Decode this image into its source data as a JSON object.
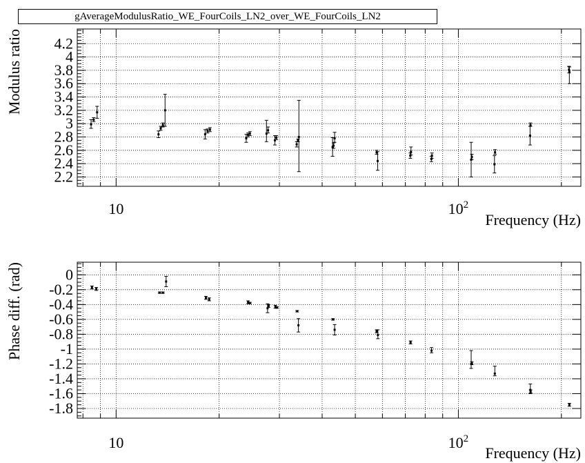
{
  "title": "gAverageModulusRatio_WE_FourCoils_LN2_over_WE_FourCoils_LN2",
  "chart_data": [
    {
      "type": "scatter",
      "xlabel": "Frequency (Hz)",
      "ylabel": "Modulus ratio",
      "xscale": "log",
      "xlim": [
        7.7,
        228
      ],
      "ylim": [
        2.06,
        4.42
      ],
      "grid": true,
      "x_ticks": [
        {
          "v": 10,
          "label": "10",
          "sup": ""
        },
        {
          "v": 100,
          "label": "10",
          "sup": "2"
        }
      ],
      "y_ticks": [
        {
          "v": 2.2,
          "label": "2.2"
        },
        {
          "v": 2.4,
          "label": "2.4"
        },
        {
          "v": 2.6,
          "label": "2.6"
        },
        {
          "v": 2.8,
          "label": "2.8"
        },
        {
          "v": 3.0,
          "label": "3"
        },
        {
          "v": 3.2,
          "label": "3.2"
        },
        {
          "v": 3.4,
          "label": "3.4"
        },
        {
          "v": 3.6,
          "label": "3.6"
        },
        {
          "v": 3.8,
          "label": "3.8"
        },
        {
          "v": 4.0,
          "label": "4"
        },
        {
          "v": 4.2,
          "label": "4.2"
        }
      ],
      "points": [
        {
          "x": 8.45,
          "y": 2.99,
          "lo": 2.93,
          "hi": 3.06
        },
        {
          "x": 8.6,
          "y": 3.06,
          "lo": 3.03,
          "hi": 3.09
        },
        {
          "x": 8.8,
          "y": 3.17,
          "lo": 3.08,
          "hi": 3.26
        },
        {
          "x": 13.3,
          "y": 2.84,
          "lo": 2.79,
          "hi": 2.89
        },
        {
          "x": 13.5,
          "y": 2.93,
          "lo": 2.9,
          "hi": 2.96
        },
        {
          "x": 13.7,
          "y": 2.98,
          "lo": 2.95,
          "hi": 3.01
        },
        {
          "x": 13.9,
          "y": 3.2,
          "lo": 2.96,
          "hi": 3.44
        },
        {
          "x": 18.2,
          "y": 2.84,
          "lo": 2.77,
          "hi": 2.91
        },
        {
          "x": 18.5,
          "y": 2.89,
          "lo": 2.86,
          "hi": 2.92
        },
        {
          "x": 18.8,
          "y": 2.91,
          "lo": 2.88,
          "hi": 2.94
        },
        {
          "x": 24.0,
          "y": 2.78,
          "lo": 2.72,
          "hi": 2.84
        },
        {
          "x": 24.3,
          "y": 2.83,
          "lo": 2.8,
          "hi": 2.86
        },
        {
          "x": 24.6,
          "y": 2.85,
          "lo": 2.82,
          "hi": 2.88
        },
        {
          "x": 27.5,
          "y": 2.85,
          "lo": 2.73,
          "hi": 3.05
        },
        {
          "x": 27.8,
          "y": 2.9,
          "lo": 2.86,
          "hi": 2.95
        },
        {
          "x": 29.1,
          "y": 2.75,
          "lo": 2.68,
          "hi": 2.82
        },
        {
          "x": 29.4,
          "y": 2.79,
          "lo": 2.76,
          "hi": 2.82
        },
        {
          "x": 33.7,
          "y": 2.69,
          "lo": 2.65,
          "hi": 2.73
        },
        {
          "x": 34.0,
          "y": 2.75,
          "lo": 2.73,
          "hi": 2.77
        },
        {
          "x": 34.2,
          "y": 2.8,
          "lo": 2.28,
          "hi": 3.35
        },
        {
          "x": 42.9,
          "y": 2.65,
          "lo": 2.51,
          "hi": 2.79
        },
        {
          "x": 43.2,
          "y": 2.67,
          "lo": 2.63,
          "hi": 2.71
        },
        {
          "x": 43.5,
          "y": 2.78,
          "lo": 2.72,
          "hi": 2.87
        },
        {
          "x": 57.7,
          "y": 2.57,
          "lo": 2.54,
          "hi": 2.6
        },
        {
          "x": 58.1,
          "y": 2.44,
          "lo": 2.3,
          "hi": 2.58
        },
        {
          "x": 72.4,
          "y": 2.52,
          "lo": 2.48,
          "hi": 2.56
        },
        {
          "x": 72.7,
          "y": 2.58,
          "lo": 2.53,
          "hi": 2.65
        },
        {
          "x": 83.4,
          "y": 2.47,
          "lo": 2.43,
          "hi": 2.51
        },
        {
          "x": 83.7,
          "y": 2.52,
          "lo": 2.48,
          "hi": 2.56
        },
        {
          "x": 109.0,
          "y": 2.46,
          "lo": 2.2,
          "hi": 2.72
        },
        {
          "x": 109.5,
          "y": 2.5,
          "lo": 2.46,
          "hi": 2.54
        },
        {
          "x": 127.5,
          "y": 2.39,
          "lo": 2.26,
          "hi": 2.52
        },
        {
          "x": 128.0,
          "y": 2.57,
          "lo": 2.54,
          "hi": 2.61
        },
        {
          "x": 162.0,
          "y": 2.82,
          "lo": 2.68,
          "hi": 2.96
        },
        {
          "x": 162.5,
          "y": 2.98,
          "lo": 2.96,
          "hi": 3.01
        },
        {
          "x": 210.5,
          "y": 3.81,
          "lo": 3.76,
          "hi": 3.86
        },
        {
          "x": 211.0,
          "y": 3.78,
          "lo": 3.6,
          "hi": 3.85
        }
      ]
    },
    {
      "type": "scatter",
      "xlabel": "Frequency (Hz)",
      "ylabel": "Phase diff. (rad)",
      "xscale": "log",
      "xlim": [
        7.7,
        228
      ],
      "ylim": [
        -1.93,
        0.17
      ],
      "grid": true,
      "x_ticks": [
        {
          "v": 10,
          "label": "10",
          "sup": ""
        },
        {
          "v": 100,
          "label": "10",
          "sup": "2"
        }
      ],
      "y_ticks": [
        {
          "v": 0,
          "label": "0"
        },
        {
          "v": -0.2,
          "label": "-0.2"
        },
        {
          "v": -0.4,
          "label": "-0.4"
        },
        {
          "v": -0.6,
          "label": "-0.6"
        },
        {
          "v": -0.8,
          "label": "-0.8"
        },
        {
          "v": -1.0,
          "label": "-1"
        },
        {
          "v": -1.2,
          "label": "-1.2"
        },
        {
          "v": -1.4,
          "label": "-1.4"
        },
        {
          "v": -1.6,
          "label": "-1.6"
        },
        {
          "v": -1.8,
          "label": "-1.8"
        }
      ],
      "points": [
        {
          "x": 8.5,
          "y": -0.17,
          "lo": -0.19,
          "hi": -0.15
        },
        {
          "x": 8.75,
          "y": -0.19,
          "lo": -0.21,
          "hi": -0.17
        },
        {
          "x": 13.4,
          "y": -0.24,
          "lo": -0.25,
          "hi": -0.23
        },
        {
          "x": 13.7,
          "y": -0.24,
          "lo": -0.25,
          "hi": -0.23
        },
        {
          "x": 14.0,
          "y": -0.09,
          "lo": -0.16,
          "hi": -0.02
        },
        {
          "x": 18.3,
          "y": -0.31,
          "lo": -0.33,
          "hi": -0.29
        },
        {
          "x": 18.7,
          "y": -0.33,
          "lo": -0.35,
          "hi": -0.31
        },
        {
          "x": 24.3,
          "y": -0.37,
          "lo": -0.39,
          "hi": -0.35
        },
        {
          "x": 24.6,
          "y": -0.38,
          "lo": -0.39,
          "hi": -0.37
        },
        {
          "x": 27.7,
          "y": -0.45,
          "lo": -0.51,
          "hi": -0.39
        },
        {
          "x": 27.9,
          "y": -0.42,
          "lo": -0.44,
          "hi": -0.4
        },
        {
          "x": 29.2,
          "y": -0.43,
          "lo": -0.45,
          "hi": -0.41
        },
        {
          "x": 29.5,
          "y": -0.44,
          "lo": -0.45,
          "hi": -0.43
        },
        {
          "x": 33.8,
          "y": -0.49,
          "lo": -0.5,
          "hi": -0.48
        },
        {
          "x": 34.1,
          "y": -0.68,
          "lo": -0.77,
          "hi": -0.59
        },
        {
          "x": 43.0,
          "y": -0.6,
          "lo": -0.61,
          "hi": -0.59
        },
        {
          "x": 43.5,
          "y": -0.74,
          "lo": -0.81,
          "hi": -0.67
        },
        {
          "x": 57.7,
          "y": -0.76,
          "lo": -0.78,
          "hi": -0.74
        },
        {
          "x": 58.2,
          "y": -0.81,
          "lo": -0.86,
          "hi": -0.74
        },
        {
          "x": 72.5,
          "y": -0.91,
          "lo": -0.93,
          "hi": -0.89
        },
        {
          "x": 83.5,
          "y": -1.02,
          "lo": -1.05,
          "hi": -0.98
        },
        {
          "x": 109.0,
          "y": -1.2,
          "lo": -1.26,
          "hi": -1.02
        },
        {
          "x": 109.5,
          "y": -1.19,
          "lo": -1.21,
          "hi": -1.17
        },
        {
          "x": 127.8,
          "y": -1.33,
          "lo": -1.36,
          "hi": -1.23
        },
        {
          "x": 162.3,
          "y": -1.55,
          "lo": -1.6,
          "hi": -1.47
        },
        {
          "x": 162.6,
          "y": -1.57,
          "lo": -1.59,
          "hi": -1.55
        },
        {
          "x": 211.0,
          "y": -1.75,
          "lo": -1.77,
          "hi": -1.73
        }
      ]
    }
  ]
}
